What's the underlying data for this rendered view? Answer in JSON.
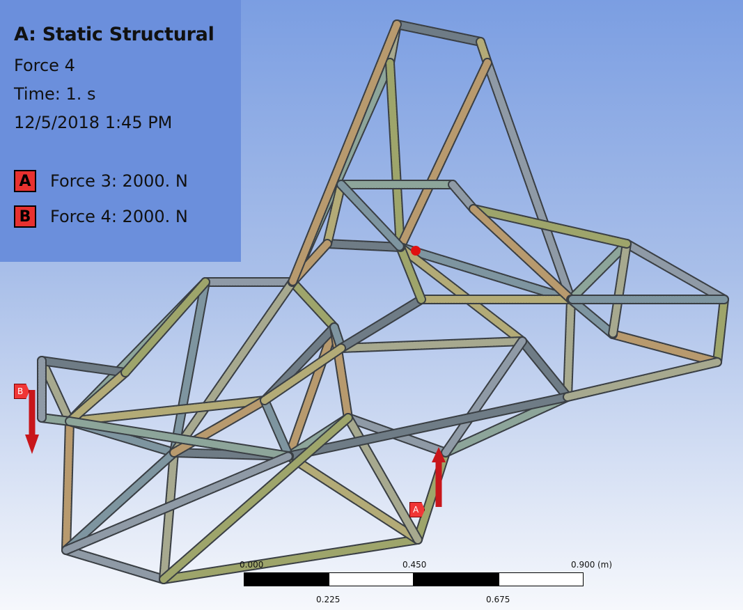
{
  "info_panel": {
    "title": "A: Static Structural",
    "subtitle": "Force 4",
    "time": "Time: 1. s",
    "datetime": "12/5/2018 1:45 PM",
    "legend": [
      {
        "key": "A",
        "label": "Force 3: 2000. N"
      },
      {
        "key": "B",
        "label": "Force 4: 2000. N"
      }
    ]
  },
  "viewport_markers": {
    "force_a_tag": "A",
    "force_b_tag": "B"
  },
  "scale_bar": {
    "top_labels": [
      "0.000",
      "0.450",
      "0.900"
    ],
    "unit": "(m)",
    "bottom_labels": [
      "0.225",
      "0.675"
    ]
  },
  "colors": {
    "background_top": "#7b9ee2",
    "background_bottom": "#f6f8fc",
    "panel": "#6b8fdc",
    "force_arrow": "#c8161b",
    "legend_key": "#e8312f"
  }
}
